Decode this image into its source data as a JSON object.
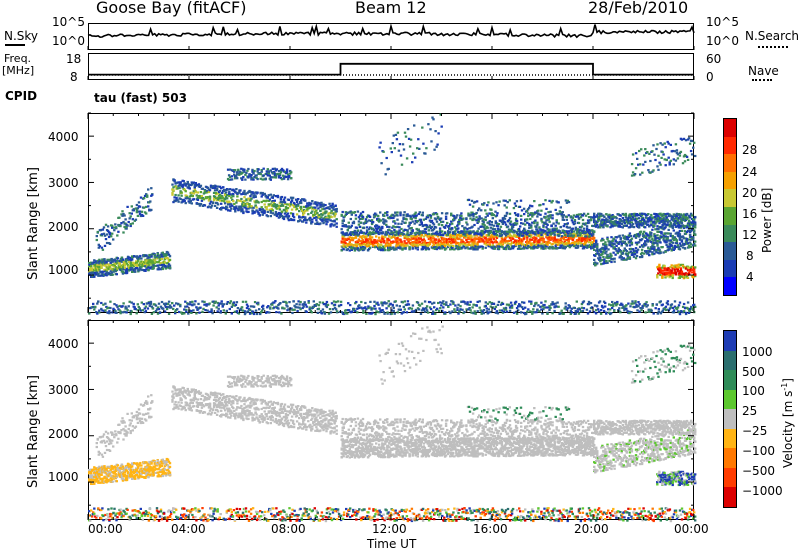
{
  "header": {
    "station": "Goose Bay (fitACF)",
    "beam": "Beam 12",
    "date": "28/Feb/2010"
  },
  "left_labels": {
    "nsky": "N.Sky",
    "freq": "Freq.",
    "mhz": "[MHz]",
    "cpid": "CPID"
  },
  "right_labels": {
    "nsearch": "N.Search",
    "nave": "Nave"
  },
  "sky_axis": {
    "top": "10^5",
    "bottom": "10^0"
  },
  "freq_axis": {
    "top": "18",
    "bottom": "8"
  },
  "nave_axis": {
    "top": "60",
    "bottom": "0"
  },
  "cpid_text": "tau (fast) 503",
  "x_axis": {
    "ticks": [
      "00:00",
      "04:00",
      "08:00",
      "12:00",
      "16:00",
      "20:00",
      "00:00"
    ],
    "label": "Time UT"
  },
  "y_axis": {
    "label": "Slant Range [km]",
    "ticks": [
      "1000",
      "2000",
      "3000",
      "4000"
    ]
  },
  "power_scale": {
    "label": "Power [dB]",
    "ticks": [
      "4",
      "8",
      "12",
      "16",
      "20",
      "24",
      "28"
    ],
    "colors": [
      "#0000ff",
      "#1a3cb4",
      "#2a5a96",
      "#3a8a5a",
      "#5aa532",
      "#c8c832",
      "#f5a000",
      "#ff6e00",
      "#ff2800",
      "#dc0000"
    ]
  },
  "velocity_scale": {
    "label": "Velocity [m s",
    "label_sup": "-1",
    "label_end": "]",
    "ticks": [
      "1000",
      "500",
      "100",
      "25",
      "−25",
      "−100",
      "−500",
      "−1000"
    ],
    "colors": [
      "#1e3cb4",
      "#2a6e6e",
      "#2e8b57",
      "#5cc82e",
      "#bebebe",
      "#ffb414",
      "#ff7800",
      "#ff3c00",
      "#dc0000"
    ]
  },
  "chart_data": {
    "type": "heatmap",
    "x_range_hours": [
      0,
      24
    ],
    "y_range_km": [
      180,
      4500
    ],
    "panels": [
      {
        "quantity": "Power",
        "units": "dB",
        "scale_range": [
          0,
          30
        ]
      },
      {
        "quantity": "Velocity",
        "units": "m s^-1",
        "scale_range": [
          -1000,
          1000
        ]
      }
    ],
    "frequency_step": {
      "change_times_ut": [
        "10:00",
        "20:00"
      ],
      "low": "10",
      "high": "14"
    }
  }
}
